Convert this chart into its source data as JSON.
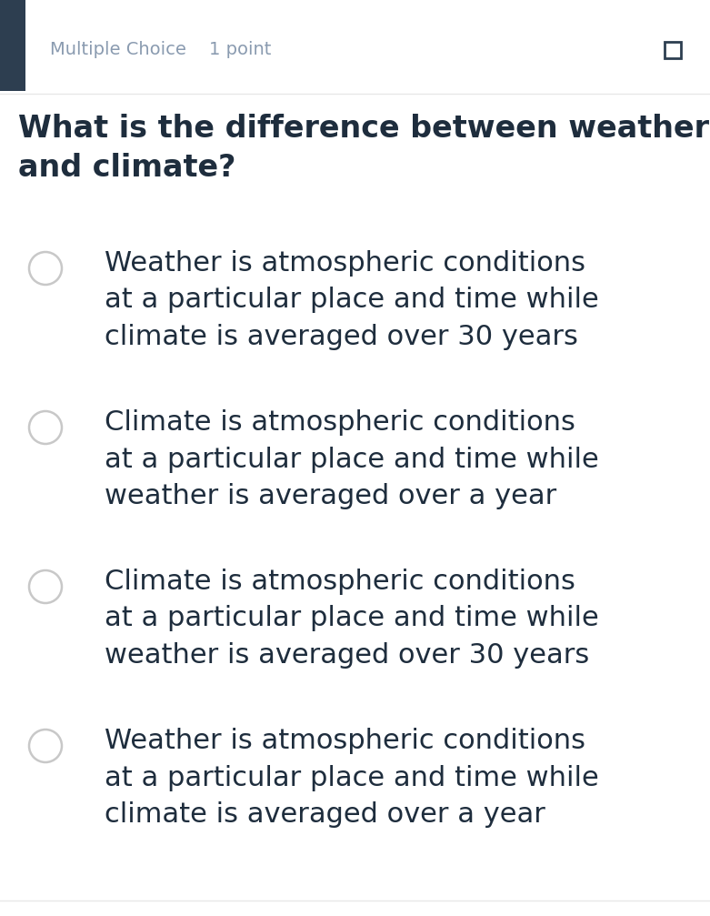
{
  "background_color": "#ffffff",
  "header_bar_color": "#2d3e50",
  "header_label": "Multiple Choice",
  "header_points": "1 point",
  "header_fontsize": 14,
  "header_text_color": "#8a9bb0",
  "question": "What is the difference between weather\nand climate?",
  "question_fontsize": 24,
  "question_color": "#1e2d3d",
  "options": [
    "Weather is atmospheric conditions\nat a particular place and time while\nclimate is averaged over 30 years",
    "Climate is atmospheric conditions\nat a particular place and time while\nweather is averaged over a year",
    "Climate is atmospheric conditions\nat a particular place and time while\nweather is averaged over 30 years",
    "Weather is atmospheric conditions\nat a particular place and time while\nclimate is averaged over a year"
  ],
  "option_fontsize": 22,
  "option_color": "#1e2d3d",
  "circle_edge_color": "#c8c8c8",
  "circle_linewidth": 1.8,
  "separator_color": "#e8e8e8"
}
